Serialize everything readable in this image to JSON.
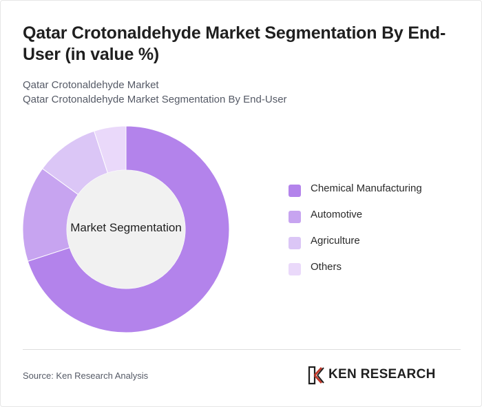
{
  "header": {
    "title": "Qatar Crotonaldehyde Market Segmentation By End-User (in value %)",
    "subtitle_1": "Qatar Crotonaldehyde Market",
    "subtitle_2": "Qatar Crotonaldehyde Market Segmentation By End-User"
  },
  "chart_data": {
    "type": "pie",
    "style": "donut",
    "center_label": "Market Segmentation",
    "categories": [
      "Chemical Manufacturing",
      "Automotive",
      "Agriculture",
      "Others"
    ],
    "values": [
      70,
      15,
      10,
      5
    ],
    "colors": [
      "#b383eb",
      "#c7a4f0",
      "#dbc6f6",
      "#ead9fa"
    ],
    "legend_position": "right"
  },
  "footer": {
    "source": "Source: Ken Research Analysis",
    "logo_text": "KEN RESEARCH"
  }
}
